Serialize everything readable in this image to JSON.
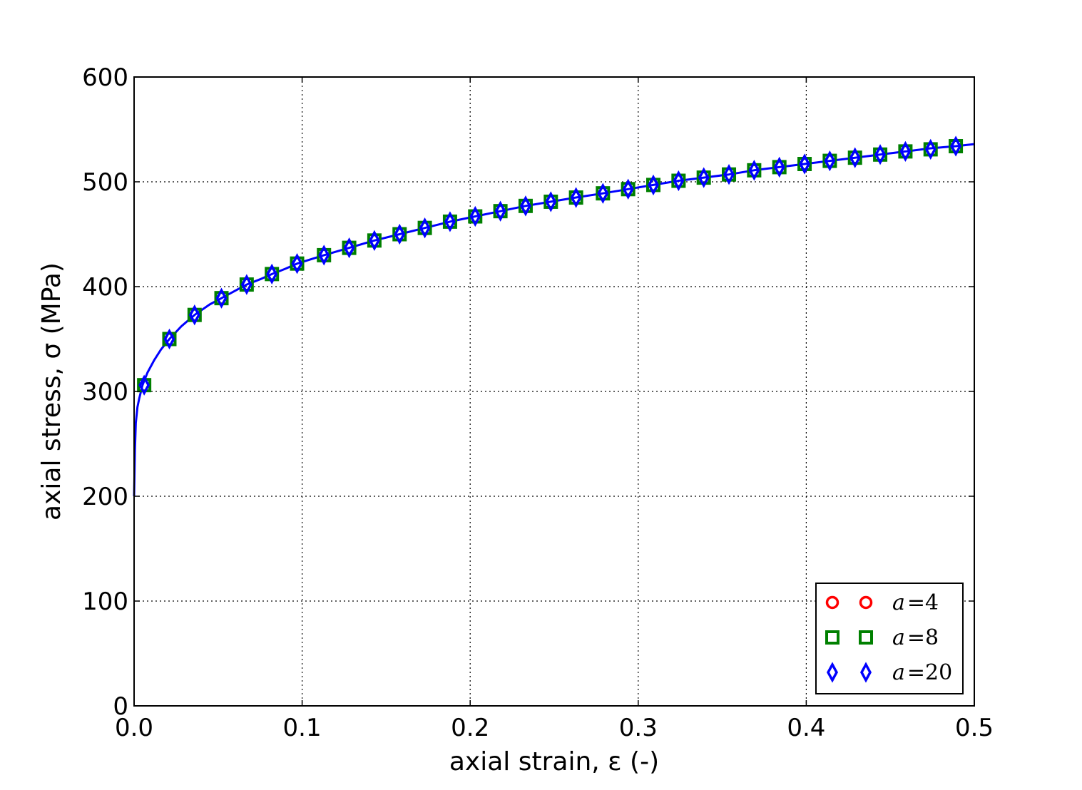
{
  "chart_data": {
    "type": "line",
    "xlabel": "axial strain, ε (-)",
    "ylabel": "axial stress, σ (MPa)",
    "xlim": [
      0.0,
      0.5
    ],
    "ylim": [
      0,
      600
    ],
    "x_ticks": [
      "0.0",
      "0.1",
      "0.2",
      "0.3",
      "0.4",
      "0.5"
    ],
    "y_ticks": [
      "0",
      "100",
      "200",
      "300",
      "400",
      "500",
      "600"
    ],
    "grid": true,
    "legend_position": "lower-right",
    "curve": {
      "color": "#0000ff",
      "x": [
        0.0,
        0.0005,
        0.001,
        0.002,
        0.003,
        0.005,
        0.008,
        0.012,
        0.016,
        0.021,
        0.028,
        0.036,
        0.045,
        0.052,
        0.06,
        0.067,
        0.075,
        0.082,
        0.09,
        0.097,
        0.113,
        0.128,
        0.143,
        0.158,
        0.173,
        0.188,
        0.203,
        0.218,
        0.233,
        0.248,
        0.263,
        0.279,
        0.294,
        0.309,
        0.324,
        0.339,
        0.354,
        0.369,
        0.384,
        0.399,
        0.414,
        0.429,
        0.444,
        0.459,
        0.474,
        0.489,
        0.5
      ],
      "y": [
        200,
        245,
        270,
        285,
        293,
        306,
        318,
        330,
        340,
        350,
        362,
        373,
        383,
        389,
        396,
        402,
        407,
        412,
        417,
        422,
        430,
        437,
        444,
        450,
        456,
        462,
        467,
        472,
        477,
        481,
        485,
        489,
        493,
        497,
        501,
        504,
        507,
        511,
        514,
        517,
        520,
        523,
        526,
        529,
        532,
        534,
        536
      ]
    },
    "series": [
      {
        "name": "a=4",
        "label_var": "a",
        "label_op": "=",
        "label_val": "4",
        "color": "#ff0000",
        "marker": "circle",
        "x": [],
        "y": []
      },
      {
        "name": "a=8",
        "label_var": "a",
        "label_op": "=",
        "label_val": "8",
        "color": "#008000",
        "marker": "square",
        "x": [
          0.006,
          0.021,
          0.036,
          0.052,
          0.067,
          0.082,
          0.097,
          0.113,
          0.128,
          0.143,
          0.158,
          0.173,
          0.188,
          0.203,
          0.218,
          0.233,
          0.248,
          0.263,
          0.279,
          0.294,
          0.309,
          0.324,
          0.339,
          0.354,
          0.369,
          0.384,
          0.399,
          0.414,
          0.429,
          0.444,
          0.459,
          0.474,
          0.489
        ],
        "y": [
          306,
          350,
          373,
          389,
          402,
          412,
          422,
          430,
          437,
          444,
          450,
          456,
          462,
          467,
          472,
          477,
          481,
          485,
          489,
          493,
          497,
          501,
          504,
          507,
          511,
          514,
          517,
          520,
          523,
          526,
          529,
          531,
          534
        ]
      },
      {
        "name": "a=20",
        "label_var": "a",
        "label_op": "=",
        "label_val": "20",
        "color": "#0000ff",
        "marker": "diamond",
        "x": [
          0.006,
          0.021,
          0.036,
          0.052,
          0.067,
          0.082,
          0.097,
          0.113,
          0.128,
          0.143,
          0.158,
          0.173,
          0.188,
          0.203,
          0.218,
          0.233,
          0.248,
          0.263,
          0.279,
          0.294,
          0.309,
          0.324,
          0.339,
          0.354,
          0.369,
          0.384,
          0.399,
          0.414,
          0.429,
          0.444,
          0.459,
          0.474,
          0.489
        ],
        "y": [
          306,
          350,
          373,
          389,
          402,
          412,
          422,
          430,
          437,
          444,
          450,
          456,
          462,
          467,
          472,
          477,
          481,
          485,
          489,
          493,
          497,
          501,
          504,
          507,
          511,
          514,
          517,
          520,
          523,
          526,
          529,
          531,
          534
        ]
      }
    ]
  }
}
